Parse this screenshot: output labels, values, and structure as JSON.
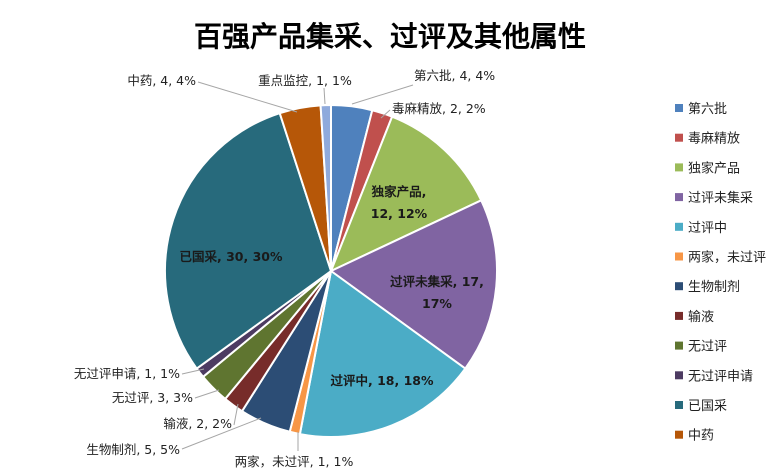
{
  "chart_data": {
    "type": "pie",
    "title": "百强产品集采、过评及其他属性",
    "legend_position": "right",
    "slices": [
      {
        "name": "第六批",
        "value": 4,
        "percent": "4%",
        "color": "#4f81bd"
      },
      {
        "name": "毒麻精放",
        "value": 2,
        "percent": "2%",
        "color": "#c0504d"
      },
      {
        "name": "独家产品",
        "value": 12,
        "percent": "12%",
        "color": "#9bbb59"
      },
      {
        "name": "过评未集采",
        "value": 17,
        "percent": "17%",
        "color": "#8064a2"
      },
      {
        "name": "过评中",
        "value": 18,
        "percent": "18%",
        "color": "#4bacc6"
      },
      {
        "name": "两家，未过评",
        "value": 1,
        "percent": "1%",
        "color": "#f79646"
      },
      {
        "name": "生物制剂",
        "value": 5,
        "percent": "5%",
        "color": "#2c4d75"
      },
      {
        "name": "输液",
        "value": 2,
        "percent": "2%",
        "color": "#772c2a"
      },
      {
        "name": "无过评",
        "value": 3,
        "percent": "3%",
        "color": "#5f7530"
      },
      {
        "name": "无过评申请",
        "value": 1,
        "percent": "1%",
        "color": "#4d3b62"
      },
      {
        "name": "已国采",
        "value": 30,
        "percent": "30%",
        "color": "#276a7c"
      },
      {
        "name": "中药",
        "value": 4,
        "percent": "4%",
        "color": "#b65708"
      },
      {
        "name": "重点监控",
        "value": 1,
        "percent": "1%",
        "color": "#8faadc"
      }
    ],
    "legend": [
      "第六批",
      "毒麻精放",
      "独家产品",
      "过评未集采",
      "过评中",
      "两家，未过评",
      "生物制剂",
      "输液",
      "无过评",
      "无过评申请",
      "已国采",
      "中药"
    ],
    "data_labels": [
      {
        "lines": [
          "第六批, 4, 4%"
        ]
      },
      {
        "lines": [
          "毒麻精放, 2, 2%"
        ]
      },
      {
        "lines": [
          "独家产品,",
          "12, 12%"
        ]
      },
      {
        "lines": [
          "过评未集采, 17,",
          "17%"
        ]
      },
      {
        "lines": [
          "过评中, 18, 18%"
        ]
      },
      {
        "lines": [
          "两家，未过评, 1, 1%"
        ]
      },
      {
        "lines": [
          "生物制剂, 5, 5%"
        ]
      },
      {
        "lines": [
          "输液, 2, 2%"
        ]
      },
      {
        "lines": [
          "无过评, 3, 3%"
        ]
      },
      {
        "lines": [
          "无过评申请, 1, 1%"
        ]
      },
      {
        "lines": [
          "已国采, 30, 30%"
        ]
      },
      {
        "lines": [
          "中药, 4, 4%"
        ]
      },
      {
        "lines": [
          "重点监控, 1, 1%"
        ]
      }
    ]
  }
}
